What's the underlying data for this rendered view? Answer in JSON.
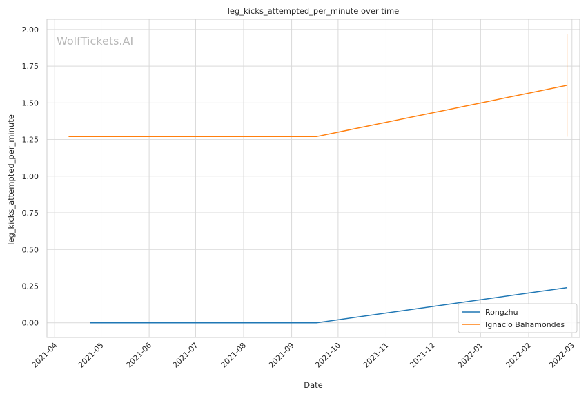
{
  "chart_data": {
    "type": "line",
    "title": "leg_kicks_attempted_per_minute over time",
    "xlabel": "Date",
    "ylabel": "leg_kicks_attempted_per_minute",
    "watermark": "WolfTickets.AI",
    "x_axis_type": "date",
    "xlim": [
      "2021-03-27",
      "2022-03-06"
    ],
    "ylim": [
      -0.1,
      2.07
    ],
    "x_ticks": [
      "2021-04-01",
      "2021-05-01",
      "2021-06-01",
      "2021-07-01",
      "2021-08-01",
      "2021-09-01",
      "2021-10-01",
      "2021-11-01",
      "2021-12-01",
      "2022-01-01",
      "2022-02-01",
      "2022-03-01"
    ],
    "x_tick_labels": [
      "2021-04",
      "2021-05",
      "2021-06",
      "2021-07",
      "2021-08",
      "2021-09",
      "2021-10",
      "2021-11",
      "2021-12",
      "2022-01",
      "2022-02",
      "2022-03"
    ],
    "y_ticks": [
      0.0,
      0.25,
      0.5,
      0.75,
      1.0,
      1.25,
      1.5,
      1.75,
      2.0
    ],
    "y_tick_labels": [
      "0.00",
      "0.25",
      "0.50",
      "0.75",
      "1.00",
      "1.25",
      "1.50",
      "1.75",
      "2.00"
    ],
    "grid": true,
    "legend_position": "bottom-right",
    "series": [
      {
        "name": "Rongzhu",
        "color": "#1f77b4",
        "x": [
          "2021-04-24",
          "2021-09-17",
          "2022-02-26"
        ],
        "y": [
          0.0,
          0.0,
          0.24
        ]
      },
      {
        "name": "Ignacio Bahamondes",
        "color": "#ff7f0e",
        "x": [
          "2021-04-10",
          "2021-09-17",
          "2022-02-26"
        ],
        "y": [
          1.27,
          1.27,
          1.62
        ]
      }
    ],
    "error_bars": [
      {
        "series": "Ignacio Bahamondes",
        "x": "2022-02-26",
        "low": 1.27,
        "high": 1.97,
        "color": "#ff7f0e"
      }
    ]
  }
}
